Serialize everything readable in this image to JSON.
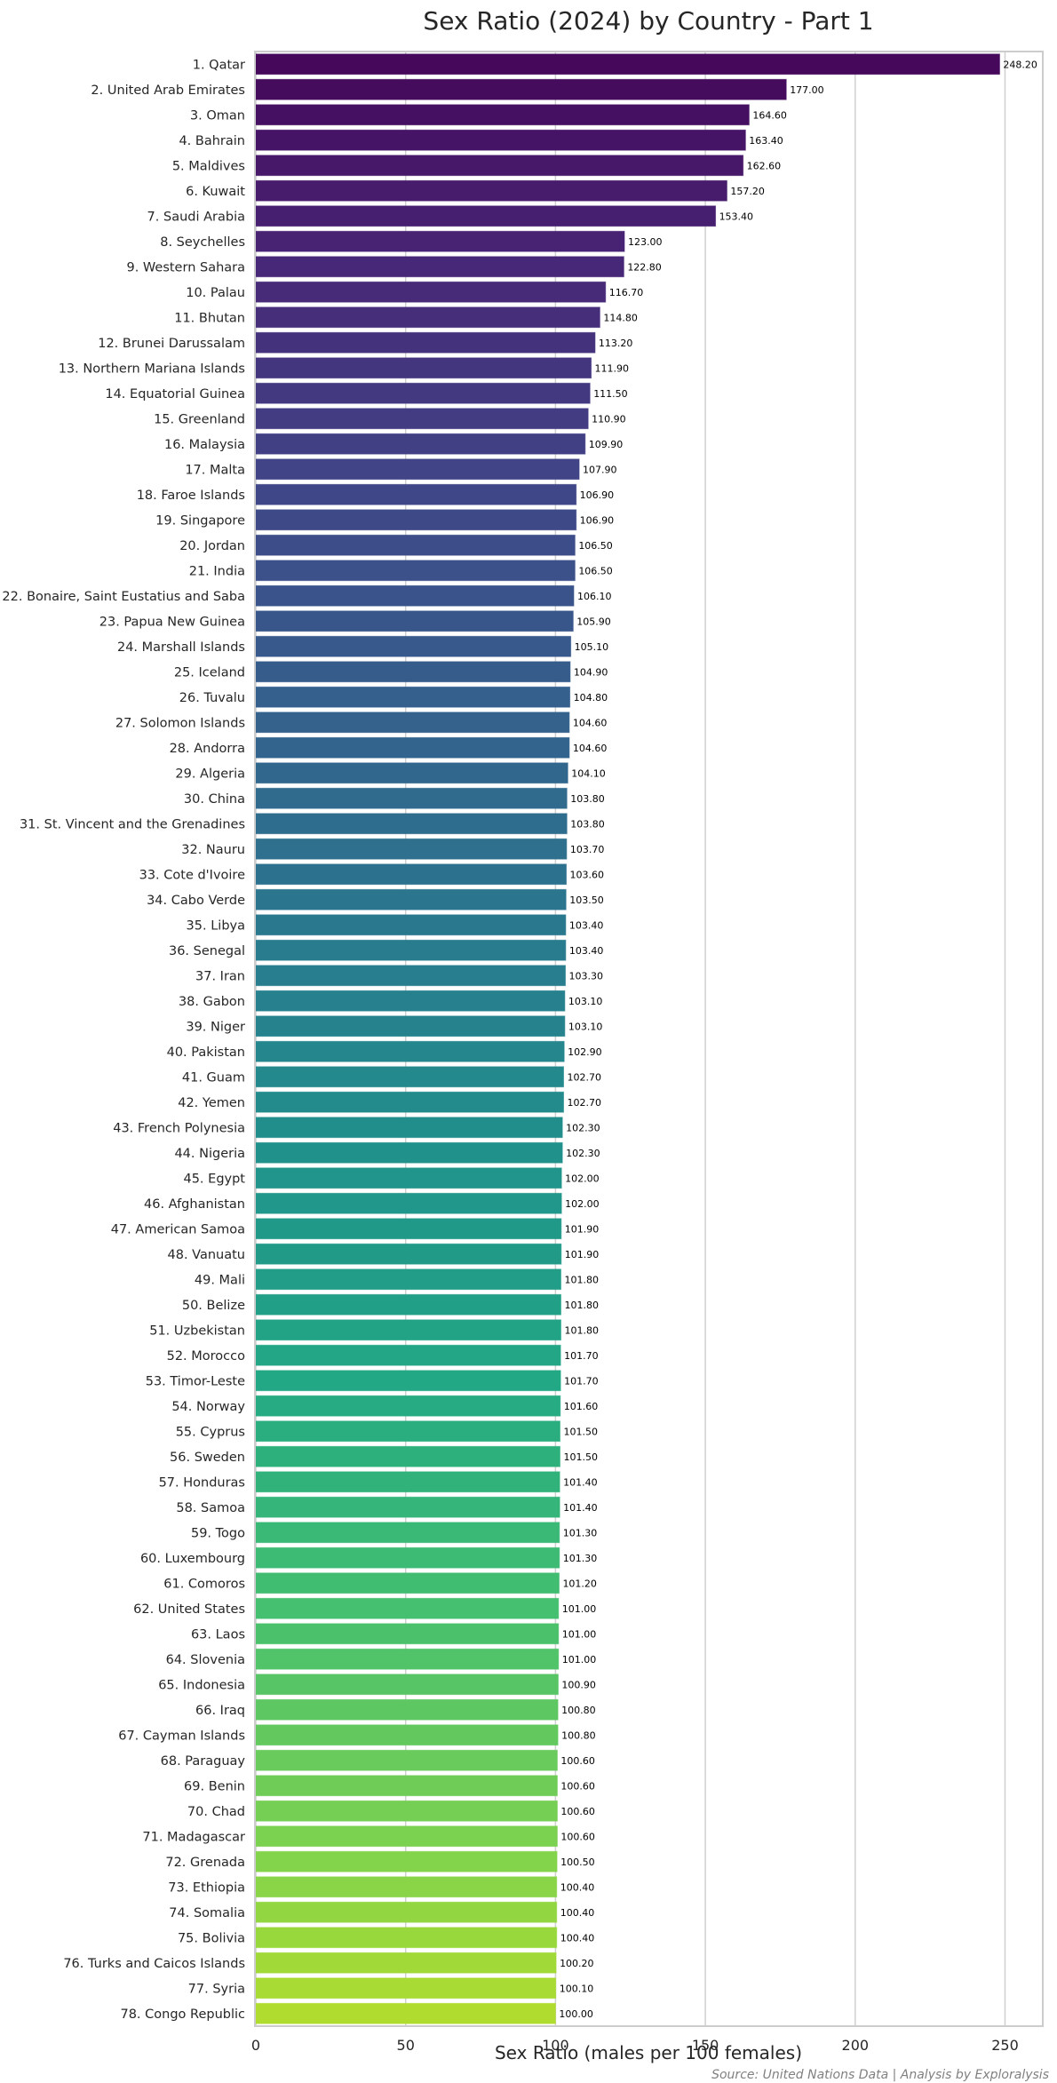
{
  "chart_data": {
    "type": "bar",
    "orientation": "horizontal",
    "title": "Sex Ratio (2024) by Country - Part 1",
    "xlabel": "Sex Ratio (males per 100 females)",
    "ylabel": "",
    "xlim": [
      0,
      262.6
    ],
    "xticks": [
      0,
      50,
      100,
      150,
      200,
      250
    ],
    "xtick_labels": [
      "0",
      "50",
      "100",
      "150",
      "200",
      "250"
    ],
    "grid": "x-major",
    "colormap": "viridis",
    "source_note": "Source: United Nations Data | Analysis by Exploralysis",
    "categories": [
      "1. Qatar",
      "2. United Arab Emirates",
      "3. Oman",
      "4. Bahrain",
      "5. Maldives",
      "6. Kuwait",
      "7. Saudi Arabia",
      "8. Seychelles",
      "9. Western Sahara",
      "10. Palau",
      "11. Bhutan",
      "12. Brunei Darussalam",
      "13. Northern Mariana Islands",
      "14. Equatorial Guinea",
      "15. Greenland",
      "16. Malaysia",
      "17. Malta",
      "18. Faroe Islands",
      "19. Singapore",
      "20. Jordan",
      "21. India",
      "22. Bonaire, Saint Eustatius and Saba",
      "23. Papua New Guinea",
      "24. Marshall Islands",
      "25. Iceland",
      "26. Tuvalu",
      "27. Solomon Islands",
      "28. Andorra",
      "29. Algeria",
      "30. China",
      "31. St. Vincent and the Grenadines",
      "32. Nauru",
      "33. Cote d'Ivoire",
      "34. Cabo Verde",
      "35. Libya",
      "36. Senegal",
      "37. Iran",
      "38. Gabon",
      "39. Niger",
      "40. Pakistan",
      "41. Guam",
      "42. Yemen",
      "43. French Polynesia",
      "44. Nigeria",
      "45. Egypt",
      "46. Afghanistan",
      "47. American Samoa",
      "48. Vanuatu",
      "49. Mali",
      "50. Belize",
      "51. Uzbekistan",
      "52. Morocco",
      "53. Timor-Leste",
      "54. Norway",
      "55. Cyprus",
      "56. Sweden",
      "57. Honduras",
      "58. Samoa",
      "59. Togo",
      "60. Luxembourg",
      "61. Comoros",
      "62. United States",
      "63. Laos",
      "64. Slovenia",
      "65. Indonesia",
      "66. Iraq",
      "67. Cayman Islands",
      "68. Paraguay",
      "69. Benin",
      "70. Chad",
      "71. Madagascar",
      "72. Grenada",
      "73. Ethiopia",
      "74. Somalia",
      "75. Bolivia",
      "76. Turks and Caicos Islands",
      "77. Syria",
      "78. Congo Republic"
    ],
    "values": [
      248.2,
      177.0,
      164.6,
      163.4,
      162.6,
      157.2,
      153.4,
      123.0,
      122.8,
      116.7,
      114.8,
      113.2,
      111.9,
      111.5,
      110.9,
      109.9,
      107.9,
      106.9,
      106.9,
      106.5,
      106.5,
      106.1,
      105.9,
      105.1,
      104.9,
      104.8,
      104.6,
      104.6,
      104.1,
      103.8,
      103.8,
      103.7,
      103.6,
      103.5,
      103.4,
      103.4,
      103.3,
      103.1,
      103.1,
      102.9,
      102.7,
      102.7,
      102.3,
      102.3,
      102.0,
      102.0,
      101.9,
      101.9,
      101.8,
      101.8,
      101.8,
      101.7,
      101.7,
      101.6,
      101.5,
      101.5,
      101.4,
      101.4,
      101.3,
      101.3,
      101.2,
      101.0,
      101.0,
      101.0,
      100.9,
      100.8,
      100.8,
      100.6,
      100.6,
      100.6,
      100.6,
      100.5,
      100.4,
      100.4,
      100.4,
      100.2,
      100.1,
      100.0
    ],
    "value_labels": [
      "248.20",
      "177.00",
      "164.60",
      "163.40",
      "162.60",
      "157.20",
      "153.40",
      "123.00",
      "122.80",
      "116.70",
      "114.80",
      "113.20",
      "111.90",
      "111.50",
      "110.90",
      "109.90",
      "107.90",
      "106.90",
      "106.90",
      "106.50",
      "106.50",
      "106.10",
      "105.90",
      "105.10",
      "104.90",
      "104.80",
      "104.60",
      "104.60",
      "104.10",
      "103.80",
      "103.80",
      "103.70",
      "103.60",
      "103.50",
      "103.40",
      "103.40",
      "103.30",
      "103.10",
      "103.10",
      "102.90",
      "102.70",
      "102.70",
      "102.30",
      "102.30",
      "102.00",
      "102.00",
      "101.90",
      "101.90",
      "101.80",
      "101.80",
      "101.80",
      "101.70",
      "101.70",
      "101.60",
      "101.50",
      "101.50",
      "101.40",
      "101.40",
      "101.30",
      "101.30",
      "101.20",
      "101.00",
      "101.00",
      "101.00",
      "100.90",
      "100.80",
      "100.80",
      "100.60",
      "100.60",
      "100.60",
      "100.60",
      "100.50",
      "100.40",
      "100.40",
      "100.40",
      "100.20",
      "100.10",
      "100.00"
    ],
    "colors": {
      "palette_start": "#440154",
      "palette_end": "#dcd33c",
      "grid": "#d0d0d0",
      "frame": "#cccccc",
      "text": "#262626",
      "source": "#808080"
    }
  }
}
